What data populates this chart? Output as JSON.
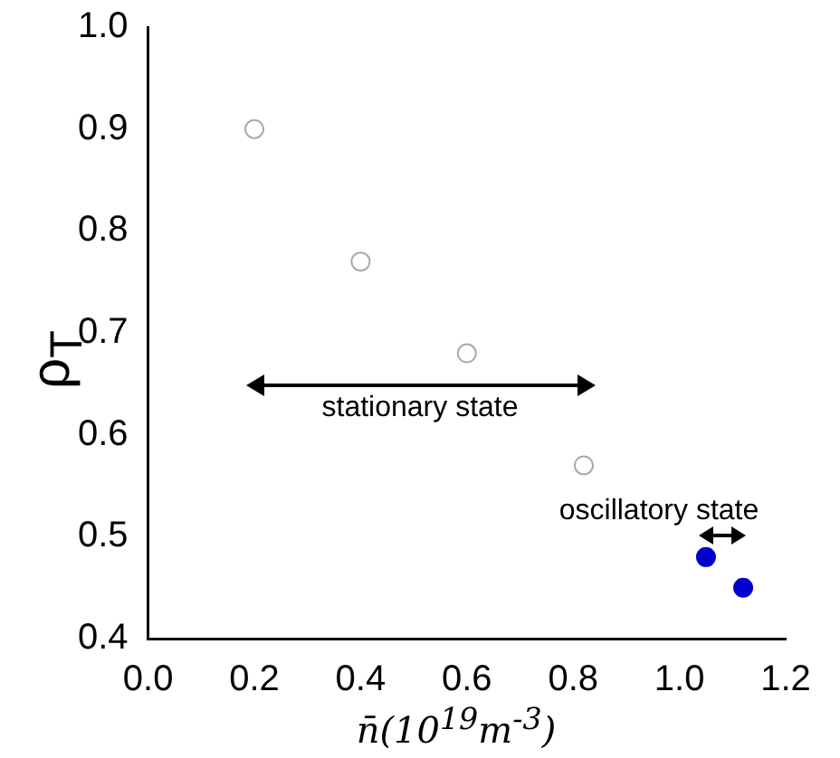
{
  "chart_data": {
    "type": "scatter",
    "xlabel": "n̄(10$^{19}$m$^{-3}$)",
    "ylabel": "ρ$_{T}$",
    "xlim": [
      0,
      1.2
    ],
    "xticks": [
      {
        "value": 0,
        "label": "0.0"
      },
      0.2,
      0.4,
      0.6,
      0.8,
      {
        "value": 1,
        "label": "1.0"
      },
      {
        "value": 1.2,
        "label": "1.2"
      }
    ],
    "ylim": [
      0.4,
      1
    ],
    "yticks": [
      0.4,
      0.5,
      0.6,
      0.7,
      0.8,
      0.9,
      {
        "value": 1,
        "label": "1.0"
      }
    ],
    "grid": false,
    "legend": false,
    "marker": "circle",
    "series": [
      {
        "color": "#aaaaaa",
        "x": [
          0.2,
          0.4,
          0.6,
          0.82
        ],
        "values": [
          0.9,
          0.77,
          0.68,
          0.57
        ]
      },
      {
        "color": "#0000cc",
        "x": [
          1.05,
          1.12
        ],
        "values": [
          0.48,
          0.45
        ]
      }
    ],
    "annotations": [
      "stationary state",
      "oscillatory state"
    ]
  }
}
